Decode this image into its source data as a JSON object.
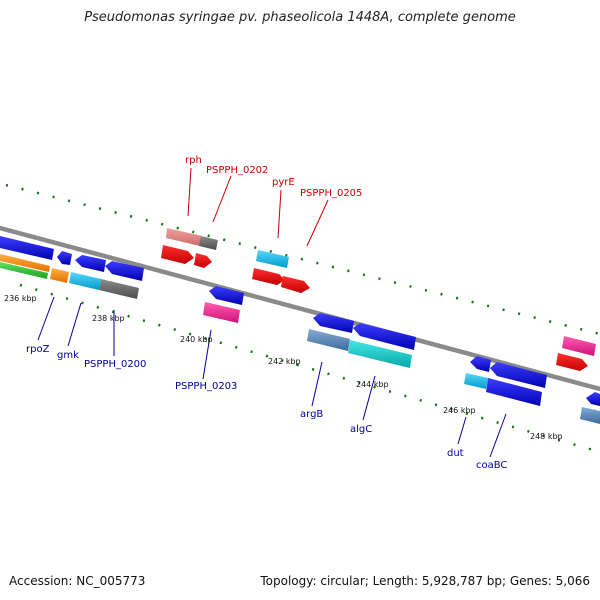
{
  "header": {
    "title": "Pseudomonas syringae pv. phaseolicola 1448A, complete genome"
  },
  "footer": {
    "accession": "Accession: NC_005773",
    "summary": "Topology: circular; Length: 5,928,787 bp; Genes: 5,066"
  },
  "colors": {
    "backbone": "#8a8a8a",
    "dots": "#117711",
    "gene_label_forward": "#cc0000",
    "gene_label_reverse": "#000099"
  },
  "ticks": [
    "236 kbp",
    "238 kbp",
    "240 kbp",
    "242 kbp",
    "244 kbp",
    "246 kbp",
    "248 kbp"
  ],
  "labels_forward": [
    "rph",
    "PSPPH_0202",
    "pyrE",
    "PSPPH_0205"
  ],
  "labels_reverse": [
    "rpoZ",
    "gmk",
    "PSPPH_0200",
    "PSPPH_0203",
    "argB",
    "algC",
    "dut",
    "coaBC"
  ]
}
